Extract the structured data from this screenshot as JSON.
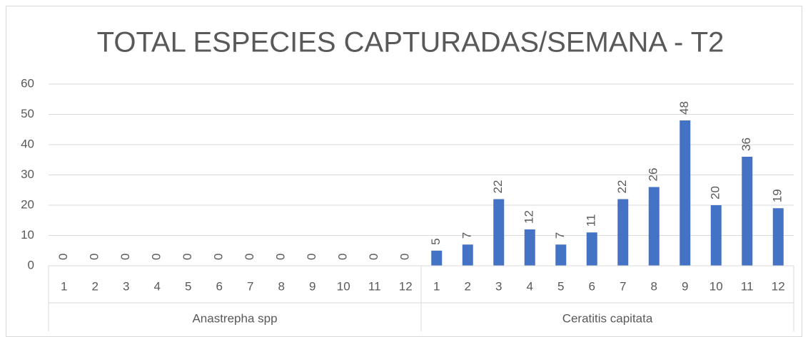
{
  "chart_data": {
    "type": "bar",
    "title": "TOTAL ESPECIES CAPTURADAS/SEMANA - T2",
    "color": "#4472c4",
    "groups": [
      {
        "name": "Anastrepha spp",
        "categories": [
          "1",
          "2",
          "3",
          "4",
          "5",
          "6",
          "7",
          "8",
          "9",
          "10",
          "11",
          "12"
        ],
        "values": [
          0,
          0,
          0,
          0,
          0,
          0,
          0,
          0,
          0,
          0,
          0,
          0
        ]
      },
      {
        "name": "Ceratitis capitata",
        "categories": [
          "1",
          "2",
          "3",
          "4",
          "5",
          "6",
          "7",
          "8",
          "9",
          "10",
          "11",
          "12"
        ],
        "values": [
          5,
          7,
          22,
          12,
          7,
          11,
          22,
          26,
          48,
          20,
          36,
          19
        ]
      }
    ],
    "ylim": [
      0,
      60
    ],
    "yticks": [
      0,
      10,
      20,
      30,
      40,
      50,
      60
    ],
    "grid": true
  }
}
